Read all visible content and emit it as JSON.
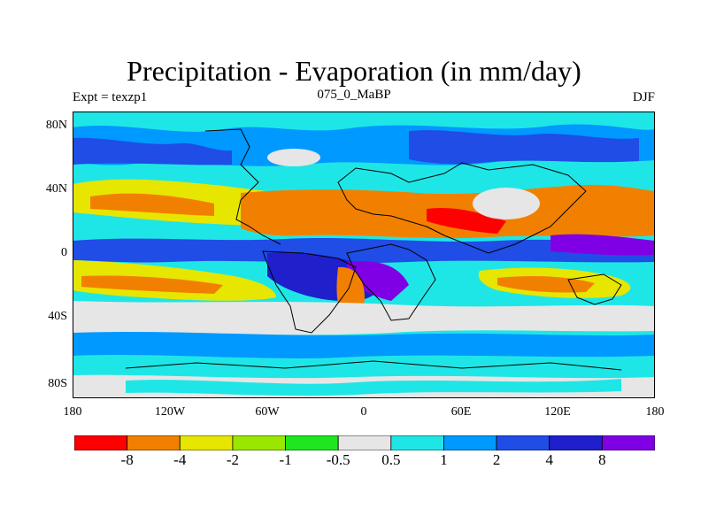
{
  "title": "Precipitation - Evaporation (in mm/day)",
  "subtitle": "075_0_MaBP",
  "experiment": "Expt = texzp1",
  "season": "DJF",
  "map": {
    "y_ticks": [
      "80N",
      "40N",
      "0",
      "40S",
      "80S"
    ],
    "x_ticks": [
      "180",
      "120W",
      "60W",
      "0",
      "60E",
      "120E",
      "180"
    ]
  },
  "colorbar": {
    "colors": [
      "#ff0000",
      "#f28000",
      "#e6e600",
      "#99e600",
      "#1fe61f",
      "#e6e6e6",
      "#1fe6e6",
      "#0099ff",
      "#1f4de6",
      "#1f1fcc",
      "#8000e6"
    ],
    "labels": [
      "-8",
      "-4",
      "-2",
      "-1",
      "-0.5",
      "0.5",
      "1",
      "2",
      "4",
      "8"
    ]
  }
}
